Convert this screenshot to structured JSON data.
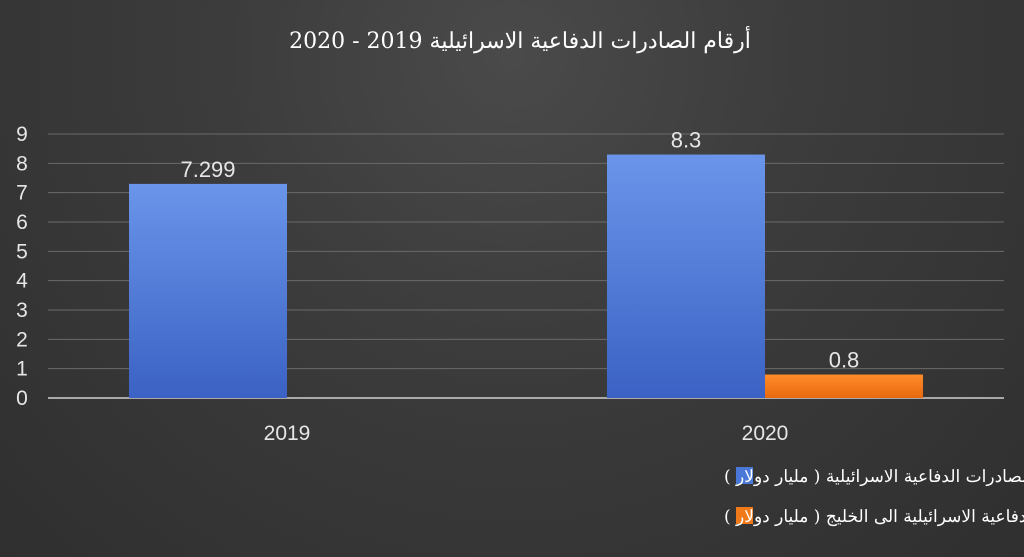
{
  "chart_data": {
    "type": "bar",
    "title": "أرقام الصادرات الدفاعية الاسرائيلية 2019 - 2020",
    "categories": [
      "2019",
      "2020"
    ],
    "series": [
      {
        "name": "إجمالي الصادرات الدفاعية الاسرائيلية ( مليار دولار )",
        "values": [
          7.299,
          8.3
        ],
        "labels": [
          "7.299",
          "8.3"
        ],
        "color": "#4a78d9"
      },
      {
        "name": "الصادرات الدفاعية الاسرائيلية الى الخليج ( مليار دولار )",
        "values": [
          null,
          0.8
        ],
        "labels": [
          null,
          "0.8"
        ],
        "color": "#f07a1a"
      }
    ],
    "ylim": [
      0,
      9
    ],
    "yticks": [
      "0",
      "1",
      "2",
      "3",
      "4",
      "5",
      "6",
      "7",
      "8",
      "9"
    ],
    "xlabel": "",
    "ylabel": "",
    "grid": true,
    "legend_position": "bottom"
  }
}
